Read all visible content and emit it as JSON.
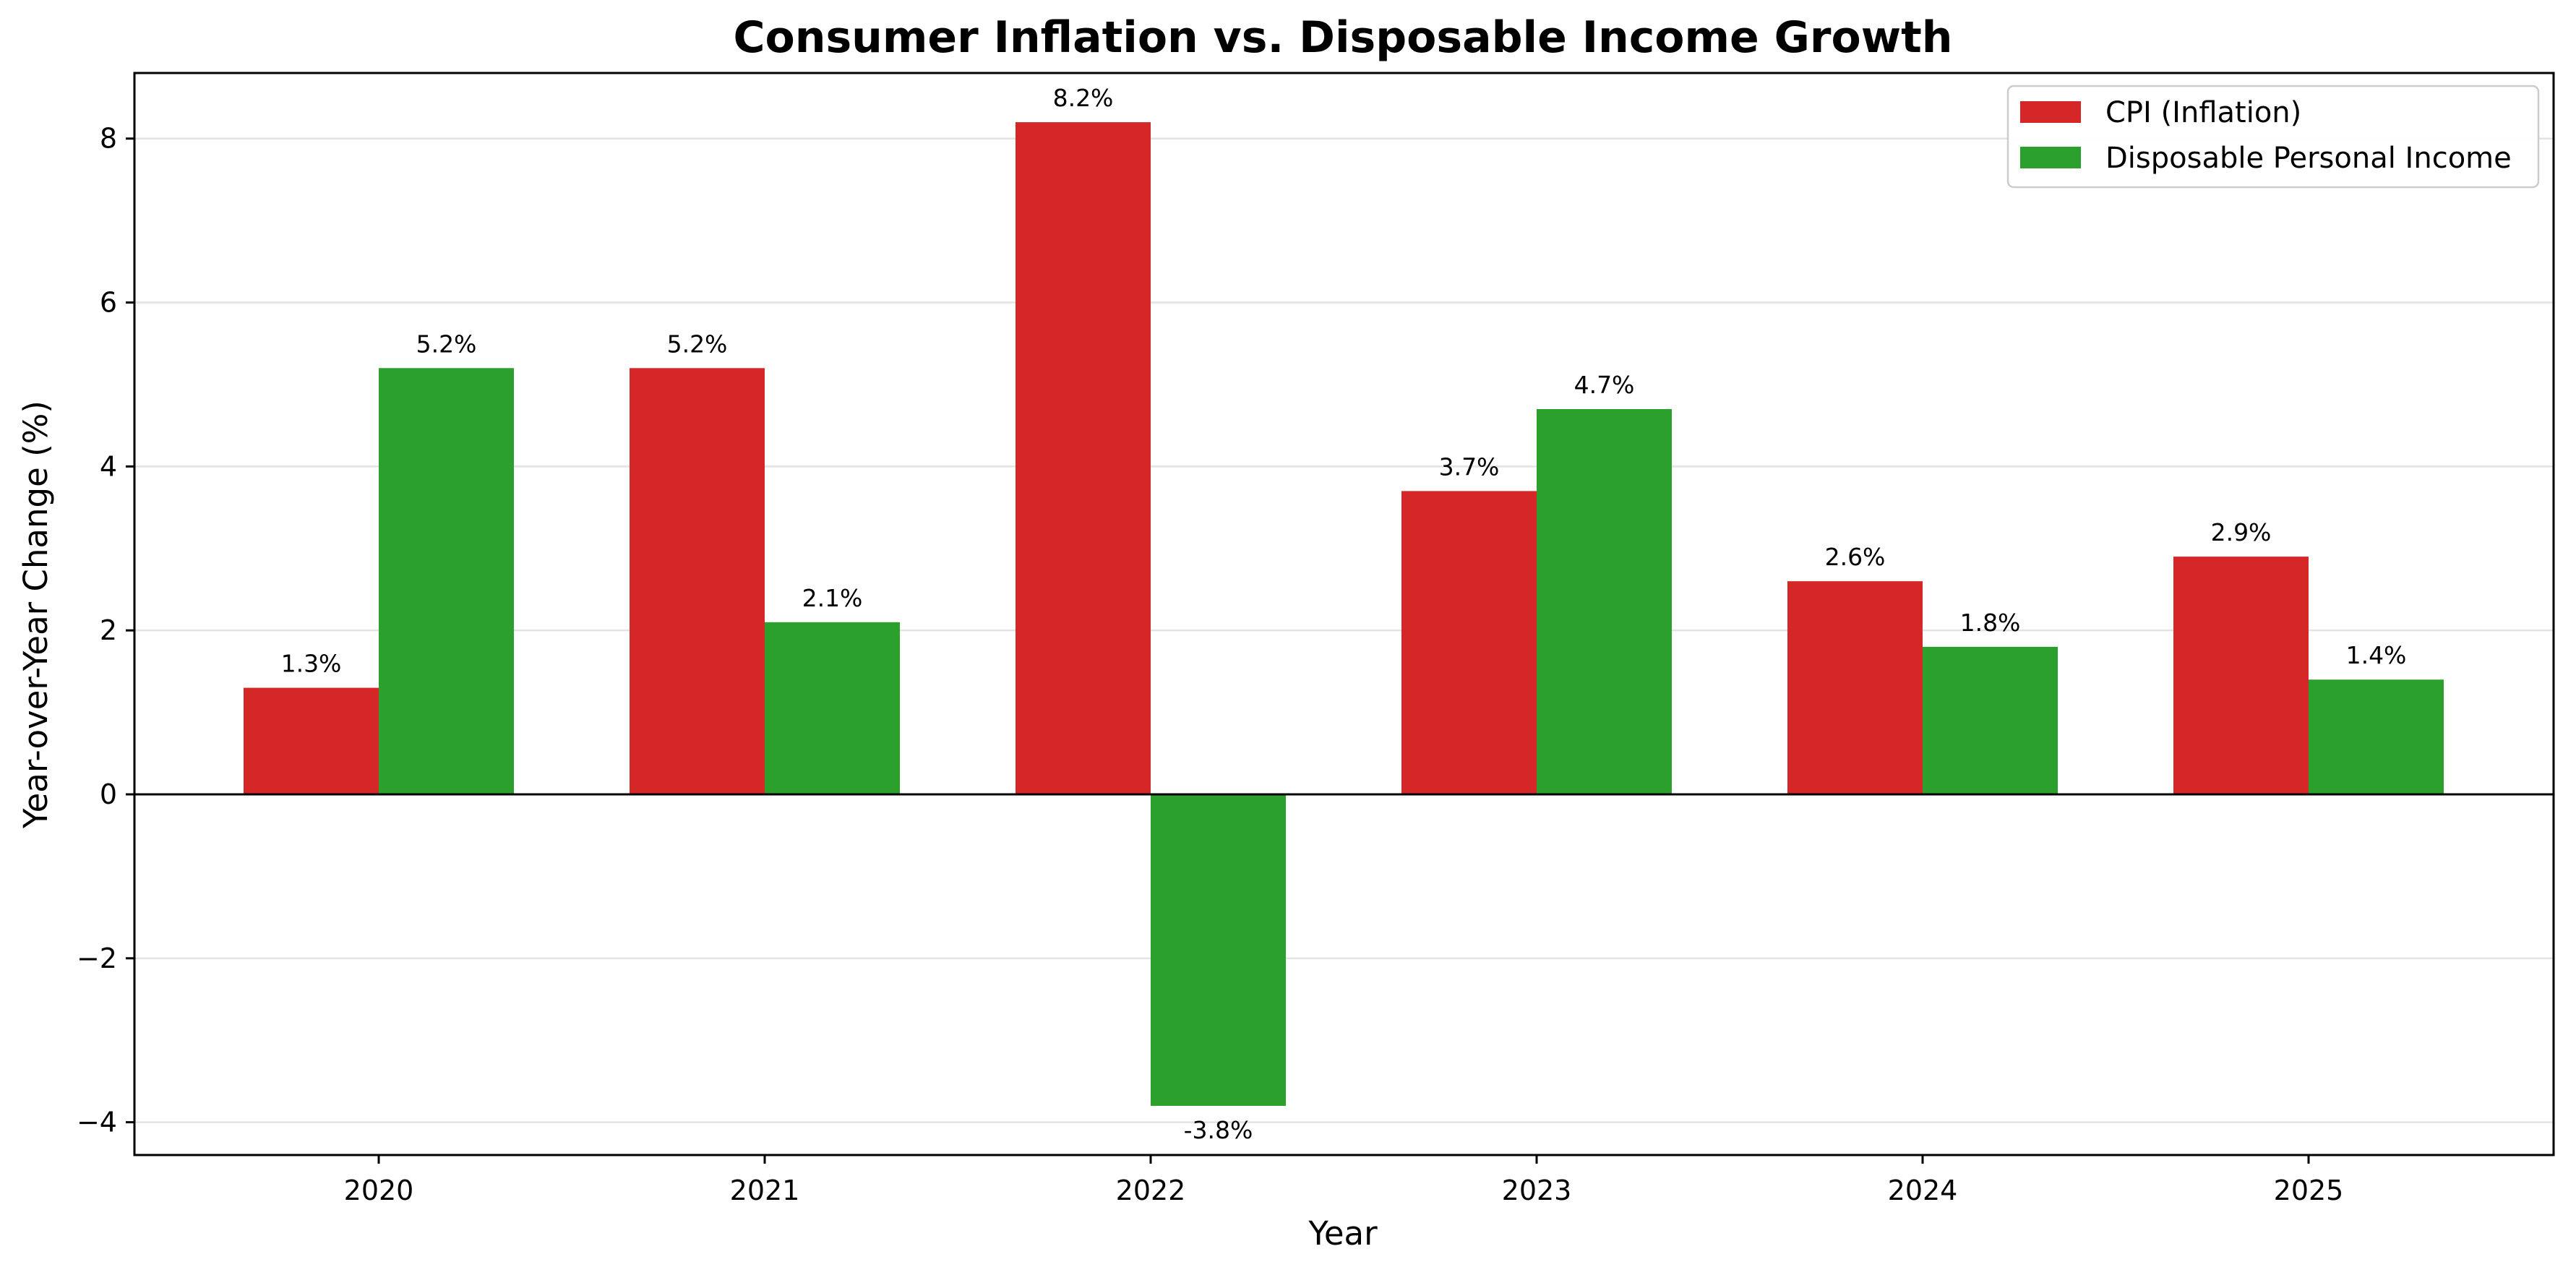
{
  "chart_data": {
    "type": "bar",
    "title": "Consumer Inflation vs. Disposable Income Growth",
    "xlabel": "Year",
    "ylabel": "Year-over-Year Change (%)",
    "categories": [
      "2020",
      "2021",
      "2022",
      "2023",
      "2024",
      "2025"
    ],
    "series": [
      {
        "name": "CPI (Inflation)",
        "color": "#d62728",
        "values": [
          1.3,
          5.2,
          8.2,
          3.7,
          2.6,
          2.9
        ],
        "labels": [
          "1.3%",
          "5.2%",
          "8.2%",
          "3.7%",
          "2.6%",
          "2.9%"
        ]
      },
      {
        "name": "Disposable Personal Income",
        "color": "#2ca02c",
        "values": [
          5.2,
          2.1,
          -3.8,
          4.7,
          1.8,
          1.4
        ],
        "labels": [
          "5.2%",
          "2.1%",
          "-3.8%",
          "4.7%",
          "1.8%",
          "1.4%"
        ]
      }
    ],
    "ylim": [
      -4.4,
      8.8
    ],
    "yticks": [
      -4,
      -2,
      0,
      2,
      4,
      6,
      8
    ],
    "ytick_labels": [
      "−4",
      "−2",
      "0",
      "2",
      "4",
      "6",
      "8"
    ],
    "grid": "horizontal",
    "zero_line": true,
    "legend_position": "top-right"
  }
}
